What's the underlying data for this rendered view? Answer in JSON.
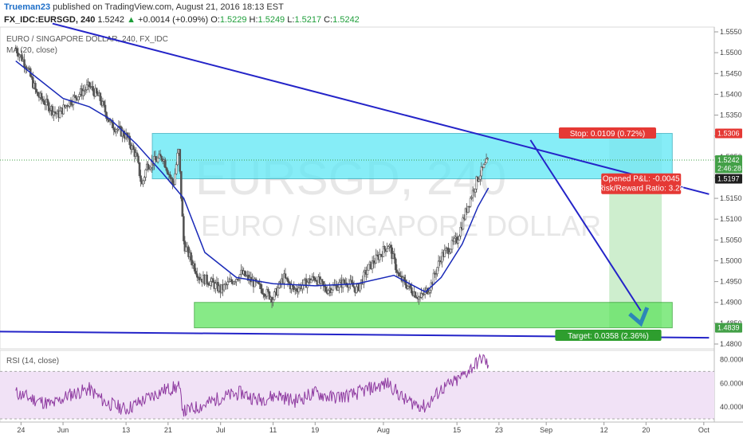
{
  "header": {
    "author": "Trueman23",
    "published": "published on TradingView.com, August 21, 2016 18:13 EST",
    "symbol": "FX_IDC:EURSGD, 240",
    "last": "1.5242",
    "change": "+0.0014 (+0.09%)",
    "open_label": "O:",
    "open": "1.5229",
    "high_label": "H:",
    "high": "1.5249",
    "low_label": "L:",
    "low": "1.5217",
    "close_label": "C:",
    "close": "1.5242"
  },
  "chart_data": {
    "type": "line",
    "title": "EURO / SINGAPORE DOLLAR, 240, FX_IDC",
    "indicator_label": "MA (20, close)",
    "watermark_symbol": "EURSGD, 240",
    "watermark_name": "EURO / SINGAPORE DOLLAR",
    "y_axis_ticks": [
      "1.5550",
      "1.5500",
      "1.5450",
      "1.5400",
      "1.5350",
      "1.5300",
      "1.5250",
      "1.5200",
      "1.5150",
      "1.5100",
      "1.5050",
      "1.5000",
      "1.4950",
      "1.4900",
      "1.4850",
      "1.4800"
    ],
    "ylim": [
      1.48,
      1.555
    ],
    "x_axis_ticks": [
      "24",
      "Jun",
      "13",
      "21",
      "Jul",
      "11",
      "19",
      "Aug",
      "15",
      "23",
      "Sep",
      "12",
      "20",
      "Oct"
    ],
    "price_path": [
      [
        "2016-05-23",
        1.551
      ],
      [
        "2016-05-25",
        1.547
      ],
      [
        "2016-05-27",
        1.54
      ],
      [
        "2016-05-31",
        1.535
      ],
      [
        "2016-06-02",
        1.538
      ],
      [
        "2016-06-06",
        1.542
      ],
      [
        "2016-06-08",
        1.539
      ],
      [
        "2016-06-10",
        1.533
      ],
      [
        "2016-06-13",
        1.53
      ],
      [
        "2016-06-15",
        1.525
      ],
      [
        "2016-06-16",
        1.518
      ],
      [
        "2016-06-17",
        1.523
      ],
      [
        "2016-06-20",
        1.525
      ],
      [
        "2016-06-22",
        1.518
      ],
      [
        "2016-06-23",
        1.527
      ],
      [
        "2016-06-24",
        1.504
      ],
      [
        "2016-06-27",
        1.496
      ],
      [
        "2016-06-29",
        1.495
      ],
      [
        "2016-07-01",
        1.493
      ],
      [
        "2016-07-05",
        1.497
      ],
      [
        "2016-07-07",
        1.495
      ],
      [
        "2016-07-11",
        1.491
      ],
      [
        "2016-07-13",
        1.496
      ],
      [
        "2016-07-15",
        1.493
      ],
      [
        "2016-07-19",
        1.496
      ],
      [
        "2016-07-21",
        1.493
      ],
      [
        "2016-07-25",
        1.495
      ],
      [
        "2016-07-27",
        1.493
      ],
      [
        "2016-07-29",
        1.498
      ],
      [
        "2016-08-02",
        1.504
      ],
      [
        "2016-08-04",
        1.496
      ],
      [
        "2016-08-08",
        1.491
      ],
      [
        "2016-08-10",
        1.494
      ],
      [
        "2016-08-12",
        1.501
      ],
      [
        "2016-08-15",
        1.505
      ],
      [
        "2016-08-17",
        1.513
      ],
      [
        "2016-08-19",
        1.52
      ],
      [
        "2016-08-21",
        1.5242
      ]
    ],
    "ma_path": [
      [
        "2016-05-23",
        1.548
      ],
      [
        "2016-05-27",
        1.544
      ],
      [
        "2016-06-01",
        1.539
      ],
      [
        "2016-06-06",
        1.537
      ],
      [
        "2016-06-10",
        1.534
      ],
      [
        "2016-06-15",
        1.528
      ],
      [
        "2016-06-20",
        1.521
      ],
      [
        "2016-06-24",
        1.515
      ],
      [
        "2016-06-28",
        1.502
      ],
      [
        "2016-07-04",
        1.496
      ],
      [
        "2016-07-11",
        1.4945
      ],
      [
        "2016-07-19",
        1.494
      ],
      [
        "2016-07-27",
        1.4945
      ],
      [
        "2016-08-03",
        1.4965
      ],
      [
        "2016-08-09",
        1.4925
      ],
      [
        "2016-08-12",
        1.496
      ],
      [
        "2016-08-16",
        1.504
      ],
      [
        "2016-08-19",
        1.513
      ],
      [
        "2016-08-21",
        1.5175
      ]
    ],
    "resistance_zone": {
      "top": 1.5306,
      "bottom": 1.5197,
      "from": "2016-06-18",
      "to": "2016-09-25"
    },
    "support_zone": {
      "top": 1.49,
      "bottom": 1.4839,
      "from": "2016-06-26",
      "to": "2016-09-25"
    },
    "trendline_top": {
      "from": [
        "2016-05-30",
        1.557
      ],
      "to": [
        "2016-10-02",
        1.516
      ]
    },
    "trendline_bottom": {
      "from": [
        "2016-05-20",
        1.483
      ],
      "to": [
        "2016-10-02",
        1.4815
      ]
    },
    "projection_arrow": {
      "from": [
        "2016-08-29",
        1.529
      ],
      "to": [
        "2016-09-19",
        1.488
      ]
    },
    "trade": {
      "stop_label": "Stop: 0.0109 (0.72%)",
      "target_label": "Target: 0.0358 (2.36%)",
      "pnl_label": "Opened P&L: -0.0045",
      "rr_label": "Risk/Reward Ratio: 3.28",
      "stop_price": 1.5306,
      "entry_price": 1.5197,
      "target_price": 1.4839,
      "from": "2016-09-13",
      "to": "2016-09-23"
    },
    "price_tags": [
      {
        "label": "1.5306",
        "color": "#e53935",
        "value": 1.5306
      },
      {
        "label": "1.5242",
        "color": "#43a047",
        "value": 1.5242
      },
      {
        "label": "2:46:28",
        "color": "#43a047",
        "value": 1.5222
      },
      {
        "label": "1.5197",
        "color": "#1e1e1e",
        "value": 1.5197
      },
      {
        "label": "1.4839",
        "color": "#43a047",
        "value": 1.4839
      }
    ],
    "rsi": {
      "label": "RSI (14, close)",
      "ticks": [
        "80.0000",
        "60.0000",
        "40.0000"
      ],
      "ylim": [
        30,
        85
      ],
      "upper_band": 70,
      "lower_band": 30,
      "path": [
        [
          "2016-05-23",
          52
        ],
        [
          "2016-05-26",
          47
        ],
        [
          "2016-05-30",
          42
        ],
        [
          "2016-06-02",
          50
        ],
        [
          "2016-06-06",
          55
        ],
        [
          "2016-06-09",
          44
        ],
        [
          "2016-06-13",
          38
        ],
        [
          "2016-06-16",
          45
        ],
        [
          "2016-06-20",
          54
        ],
        [
          "2016-06-23",
          57
        ],
        [
          "2016-06-24",
          36
        ],
        [
          "2016-06-28",
          42
        ],
        [
          "2016-07-01",
          48
        ],
        [
          "2016-07-05",
          52
        ],
        [
          "2016-07-08",
          46
        ],
        [
          "2016-07-12",
          50
        ],
        [
          "2016-07-15",
          45
        ],
        [
          "2016-07-19",
          52
        ],
        [
          "2016-07-22",
          48
        ],
        [
          "2016-07-26",
          50
        ],
        [
          "2016-07-29",
          55
        ],
        [
          "2016-08-02",
          60
        ],
        [
          "2016-08-05",
          46
        ],
        [
          "2016-08-09",
          40
        ],
        [
          "2016-08-12",
          55
        ],
        [
          "2016-08-15",
          62
        ],
        [
          "2016-08-17",
          70
        ],
        [
          "2016-08-19",
          78
        ],
        [
          "2016-08-20",
          82
        ],
        [
          "2016-08-21",
          74
        ]
      ]
    },
    "colors": {
      "candle": "#555555",
      "ma": "#1a2ab8",
      "trendline": "#2424c8",
      "resistance_fill": "#5ee8f5",
      "support_fill": "#5fe35f",
      "target_fill": "#c6ebc6",
      "stop_fill": "#d8d8d8",
      "rsi_line": "#8e3aa0",
      "rsi_fill": "#f1e2f6",
      "arrow": "#2c86b8"
    }
  }
}
